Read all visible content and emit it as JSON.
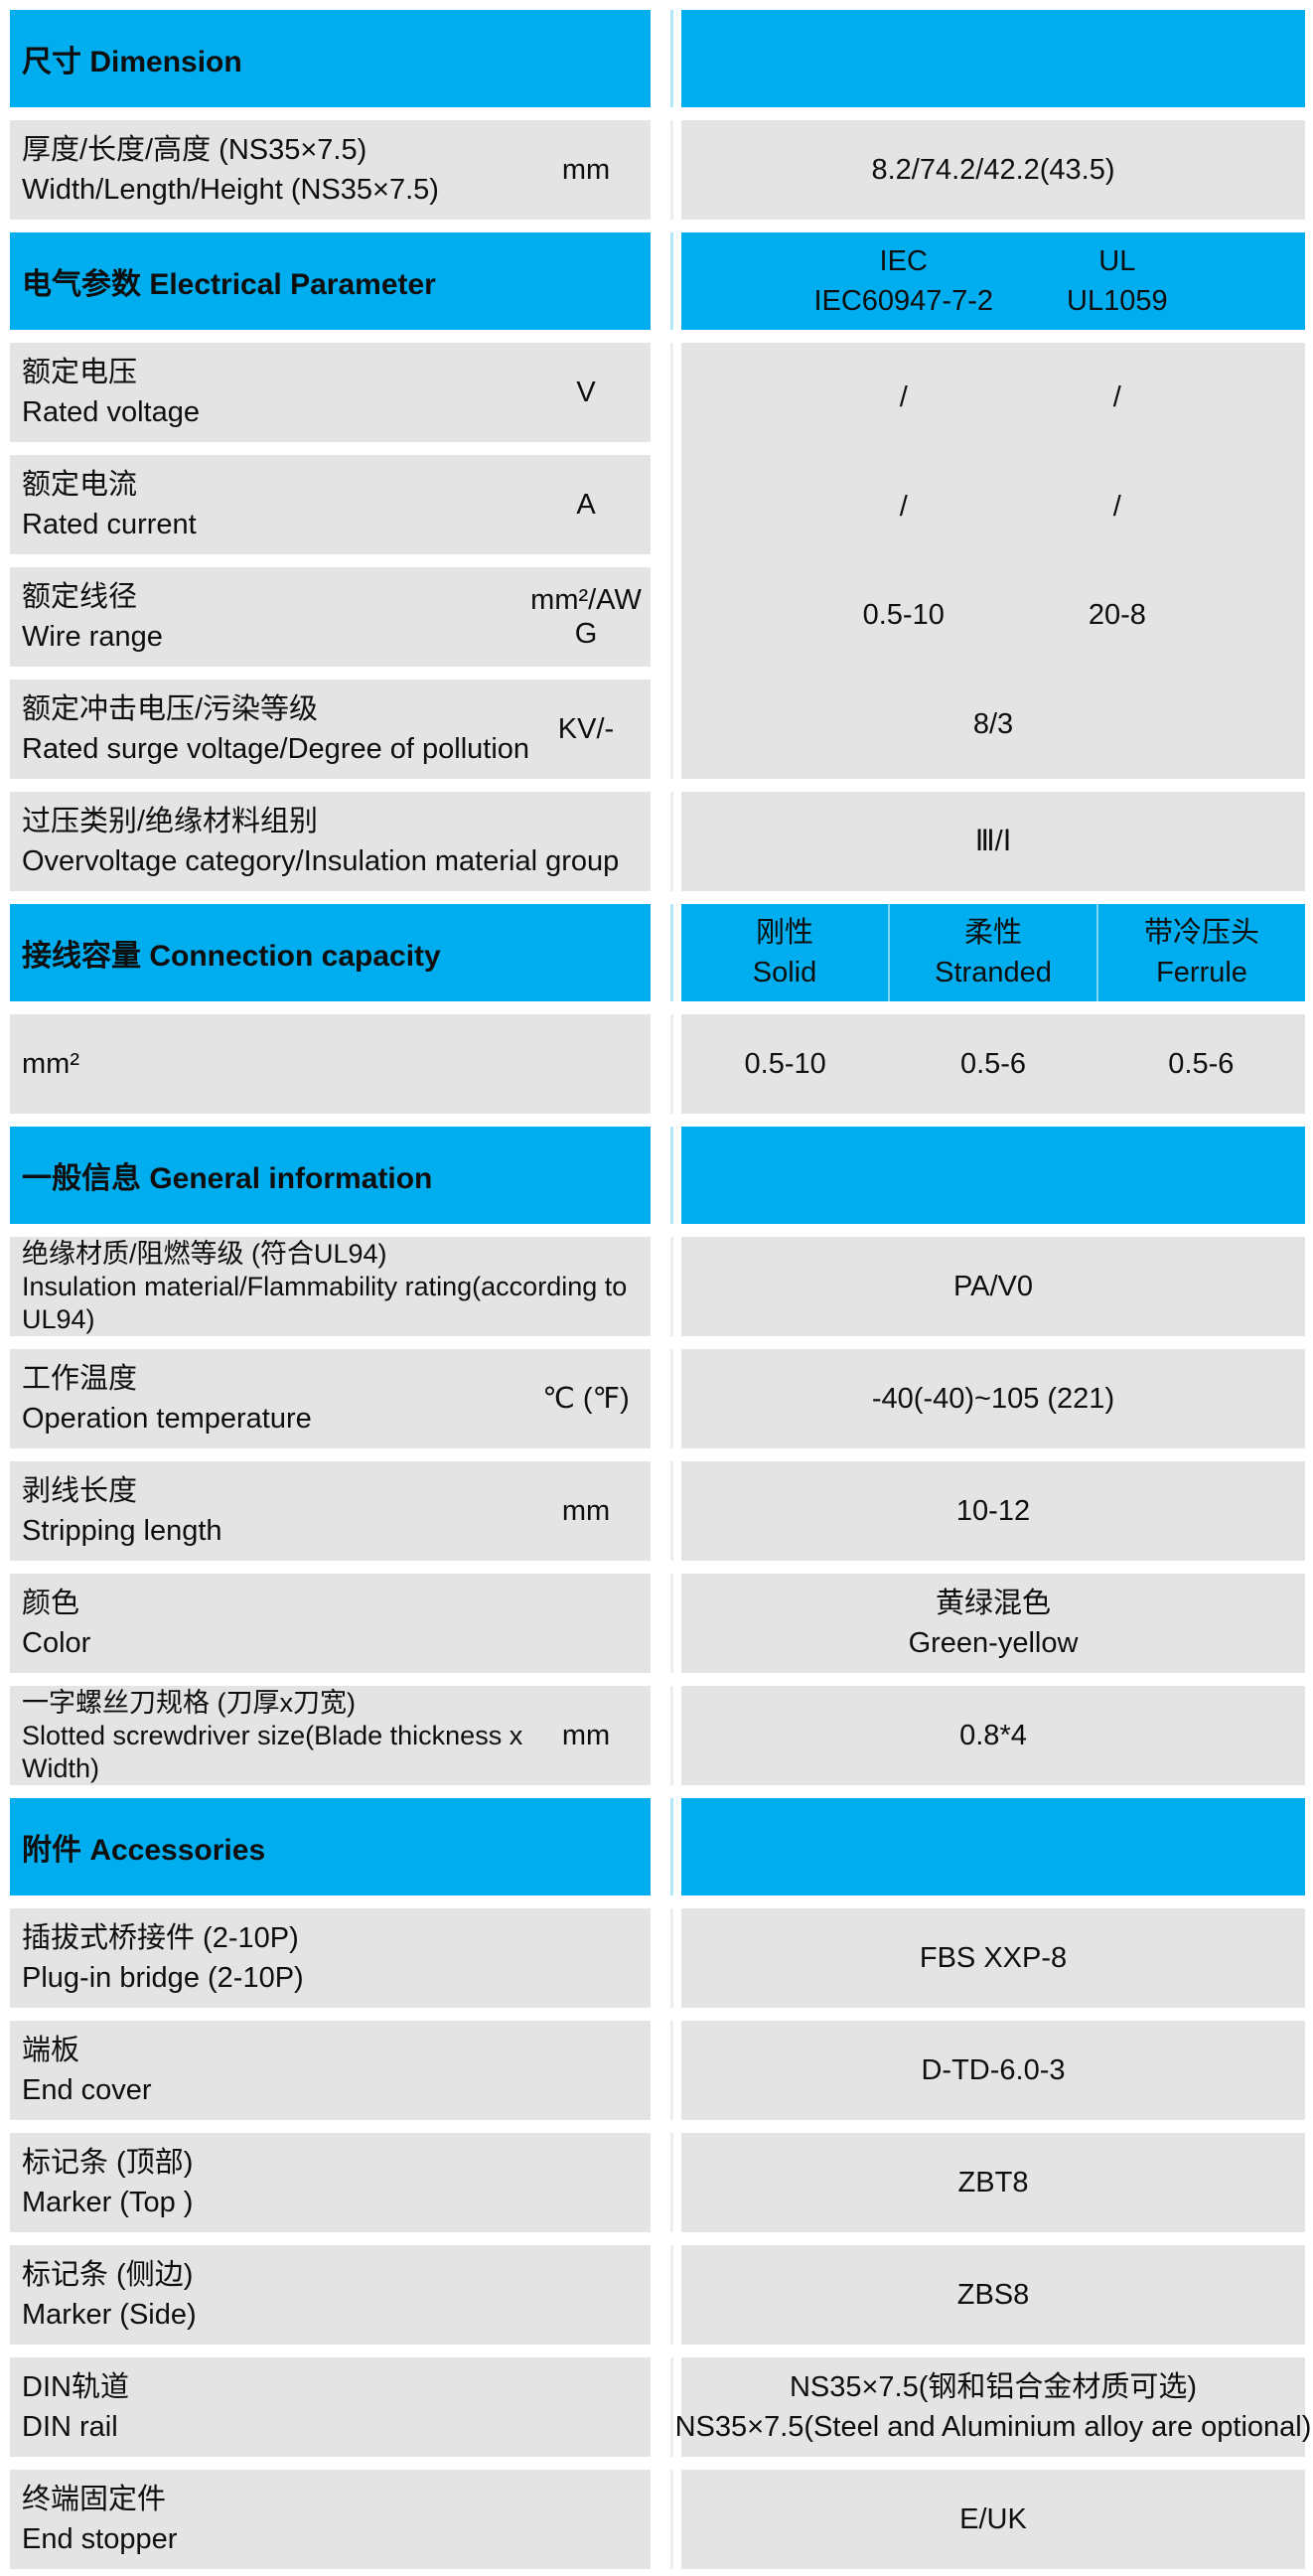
{
  "colors": {
    "section_header_bg": "#00AEEF",
    "row_bg": "#E4E4E4",
    "text": "#0E0E0E"
  },
  "blocks": [
    {
      "type": "header",
      "title": "尺寸 Dimension"
    },
    {
      "type": "row",
      "lines": [
        "厚度/长度/高度 (NS35×7.5)",
        "Width/Length/Height (NS35×7.5)"
      ],
      "unit": "mm",
      "value": "8.2/74.2/42.2(43.5)"
    },
    {
      "type": "header",
      "title": "电气参数 Electrical Parameter",
      "columns": [
        {
          "line1": "IEC",
          "line2": "IEC60947-7-2"
        },
        {
          "line1": "UL",
          "line2": "UL1059"
        }
      ]
    },
    {
      "type": "row",
      "lines": [
        "额定电压",
        "Rated voltage"
      ],
      "unit": "V",
      "values": [
        "/",
        "/"
      ]
    },
    {
      "type": "row",
      "lines": [
        "额定电流",
        "Rated current"
      ],
      "unit": "A",
      "values": [
        "/",
        "/"
      ]
    },
    {
      "type": "row",
      "lines": [
        "额定线径",
        "Wire range"
      ],
      "unit": "mm²/AWG",
      "values": [
        "0.5-10",
        "20-8"
      ]
    },
    {
      "type": "row",
      "lines": [
        "额定冲击电压/污染等级",
        "Rated surge voltage/Degree of pollution"
      ],
      "unit": "KV/-",
      "value": "8/3"
    },
    {
      "type": "row",
      "lines": [
        "过压类别/绝缘材料组别",
        "Overvoltage category/Insulation material group"
      ],
      "value": "Ⅲ/Ⅰ"
    },
    {
      "type": "header",
      "title": "接线容量 Connection capacity",
      "columns": [
        {
          "line1": "刚性",
          "line2": "Solid"
        },
        {
          "line1": "柔性",
          "line2": "Stranded"
        },
        {
          "line1": "带冷压头",
          "line2": "Ferrule"
        }
      ]
    },
    {
      "type": "row",
      "lines": [
        "mm²"
      ],
      "values": [
        "0.5-10",
        "0.5-6",
        "0.5-6"
      ]
    },
    {
      "type": "header",
      "title": "一般信息 General information"
    },
    {
      "type": "row",
      "lines": [
        "绝缘材质/阻燃等级 (符合UL94)",
        "Insulation material/Flammability rating(according to",
        "UL94)"
      ],
      "value": "PA/V0"
    },
    {
      "type": "row",
      "lines": [
        "工作温度",
        "Operation temperature"
      ],
      "unit": "℃ (℉)",
      "value": "-40(-40)~105 (221)"
    },
    {
      "type": "row",
      "lines": [
        "剥线长度",
        "Stripping length"
      ],
      "unit": "mm",
      "value": "10-12"
    },
    {
      "type": "row",
      "lines": [
        "颜色",
        "Color"
      ],
      "value_lines": [
        "黄绿混色",
        "Green-yellow"
      ]
    },
    {
      "type": "row",
      "lines": [
        "一字螺丝刀规格 (刀厚x刀宽)",
        "Slotted screwdriver size(Blade thickness x",
        "Width)"
      ],
      "unit": "mm",
      "value": "0.8*4"
    },
    {
      "type": "header",
      "title": "附件 Accessories"
    },
    {
      "type": "row",
      "lines": [
        "插拔式桥接件 (2-10P)",
        "Plug-in bridge (2-10P)"
      ],
      "value": "FBS XXP-8"
    },
    {
      "type": "row",
      "lines": [
        "端板",
        "End cover"
      ],
      "value": "D-TD-6.0-3"
    },
    {
      "type": "row",
      "lines": [
        "标记条 (顶部)",
        "Marker (Top )"
      ],
      "value": "ZBT8"
    },
    {
      "type": "row",
      "lines": [
        "标记条 (侧边)",
        "Marker (Side)"
      ],
      "value": "ZBS8"
    },
    {
      "type": "row",
      "lines": [
        "DIN轨道",
        "DIN rail"
      ],
      "value_lines": [
        "NS35×7.5(钢和铝合金材质可选)",
        "NS35×7.5(Steel and Aluminium alloy are optional)"
      ]
    },
    {
      "type": "row",
      "lines": [
        "终端固定件",
        "End stopper"
      ],
      "value": "E/UK"
    }
  ]
}
